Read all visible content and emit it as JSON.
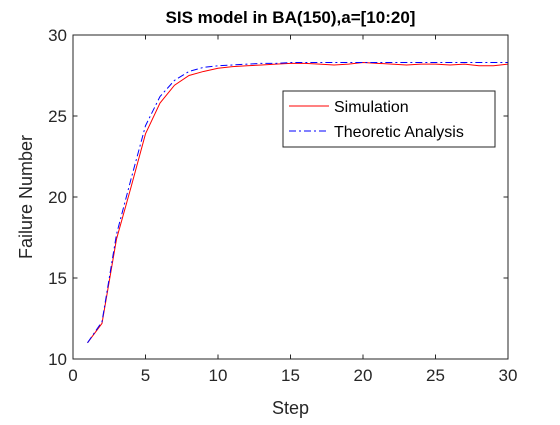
{
  "chart_data": {
    "type": "line",
    "title": "SIS model in BA(150),a=[10:20]",
    "xlabel": "Step",
    "ylabel": "Failure Number",
    "xlim": [
      0,
      30
    ],
    "ylim": [
      10,
      30
    ],
    "xticks": [
      0,
      5,
      10,
      15,
      20,
      25,
      30
    ],
    "yticks": [
      10,
      15,
      20,
      25,
      30
    ],
    "grid": false,
    "legend_position": "top-right",
    "x": [
      1,
      2,
      3,
      4,
      5,
      6,
      7,
      8,
      9,
      10,
      11,
      12,
      13,
      14,
      15,
      16,
      17,
      18,
      19,
      20,
      21,
      22,
      23,
      24,
      25,
      26,
      27,
      28,
      29,
      30
    ],
    "series": [
      {
        "name": "Simulation",
        "color": "#ff0000",
        "line_style": "solid",
        "values": [
          11.0,
          12.2,
          17.4,
          20.6,
          23.9,
          25.8,
          26.9,
          27.5,
          27.75,
          27.95,
          28.05,
          28.1,
          28.15,
          28.2,
          28.25,
          28.25,
          28.2,
          28.15,
          28.2,
          28.3,
          28.25,
          28.2,
          28.15,
          28.2,
          28.2,
          28.15,
          28.2,
          28.1,
          28.1,
          28.2
        ]
      },
      {
        "name": "Theoretic Analysis",
        "color": "#0000ff",
        "line_style": "dash-dot",
        "values": [
          11.0,
          12.3,
          17.7,
          21.1,
          24.4,
          26.2,
          27.2,
          27.75,
          28.0,
          28.1,
          28.15,
          28.2,
          28.25,
          28.25,
          28.3,
          28.3,
          28.3,
          28.3,
          28.3,
          28.3,
          28.3,
          28.3,
          28.3,
          28.3,
          28.3,
          28.3,
          28.3,
          28.3,
          28.3,
          28.3
        ]
      }
    ]
  }
}
